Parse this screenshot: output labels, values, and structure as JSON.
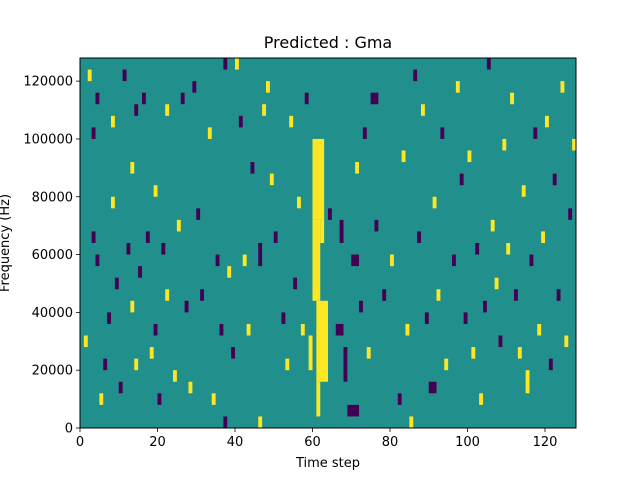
{
  "chart_data": {
    "type": "heatmap",
    "title": "Predicted : Gma",
    "xlabel": "Time step",
    "ylabel": "Frequency (Hz)",
    "xlim": [
      0,
      128
    ],
    "ylim": [
      0,
      128000
    ],
    "xticks": [
      0,
      20,
      40,
      60,
      80,
      100,
      120
    ],
    "yticks": [
      0,
      20000,
      40000,
      60000,
      80000,
      100000,
      120000
    ],
    "xtick_labels": [
      "0",
      "20",
      "40",
      "60",
      "80",
      "100",
      "120"
    ],
    "ytick_labels": [
      "0",
      "20000",
      "40000",
      "60000",
      "80000",
      "100000",
      "120000"
    ],
    "grid": false,
    "colormap": "viridis",
    "colors": {
      "background": "#21908d",
      "low": "#440154",
      "high": "#fde725"
    },
    "bin_height_hz": 4000,
    "cells": [
      {
        "t": 60,
        "f": 72000,
        "v": "high",
        "frames": 3,
        "height": 28000
      },
      {
        "t": 60,
        "f": 44000,
        "v": "high",
        "frames": 2,
        "height": 28000
      },
      {
        "t": 61,
        "f": 16000,
        "v": "high",
        "frames": 3,
        "height": 28000
      },
      {
        "t": 61,
        "f": 4000,
        "v": "high",
        "frames": 1,
        "height": 12000
      },
      {
        "t": 59,
        "f": 20000,
        "v": "high",
        "frames": 1,
        "height": 12000
      },
      {
        "t": 62,
        "f": 64000,
        "v": "high",
        "frames": 1,
        "height": 8000
      },
      {
        "t": 2,
        "f": 120000,
        "v": "high",
        "frames": 1,
        "height": 4000
      },
      {
        "t": 3,
        "f": 64000,
        "v": "low",
        "frames": 1,
        "height": 4000
      },
      {
        "t": 3,
        "f": 100000,
        "v": "low",
        "frames": 1,
        "height": 4000
      },
      {
        "t": 4,
        "f": 112000,
        "v": "low",
        "frames": 1,
        "height": 4000
      },
      {
        "t": 1,
        "f": 28000,
        "v": "high",
        "frames": 1,
        "height": 4000
      },
      {
        "t": 4,
        "f": 56000,
        "v": "low",
        "frames": 1,
        "height": 4000
      },
      {
        "t": 5,
        "f": 8000,
        "v": "high",
        "frames": 1,
        "height": 4000
      },
      {
        "t": 6,
        "f": 20000,
        "v": "low",
        "frames": 1,
        "height": 4000
      },
      {
        "t": 7,
        "f": 36000,
        "v": "low",
        "frames": 1,
        "height": 4000
      },
      {
        "t": 8,
        "f": 104000,
        "v": "high",
        "frames": 1,
        "height": 4000
      },
      {
        "t": 8,
        "f": 76000,
        "v": "high",
        "frames": 1,
        "height": 4000
      },
      {
        "t": 9,
        "f": 48000,
        "v": "low",
        "frames": 1,
        "height": 4000
      },
      {
        "t": 10,
        "f": 12000,
        "v": "low",
        "frames": 1,
        "height": 4000
      },
      {
        "t": 11,
        "f": 120000,
        "v": "low",
        "frames": 1,
        "height": 4000
      },
      {
        "t": 12,
        "f": 60000,
        "v": "low",
        "frames": 1,
        "height": 4000
      },
      {
        "t": 13,
        "f": 88000,
        "v": "high",
        "frames": 1,
        "height": 4000
      },
      {
        "t": 13,
        "f": 40000,
        "v": "high",
        "frames": 1,
        "height": 4000
      },
      {
        "t": 14,
        "f": 108000,
        "v": "low",
        "frames": 1,
        "height": 4000
      },
      {
        "t": 14,
        "f": 20000,
        "v": "high",
        "frames": 1,
        "height": 4000
      },
      {
        "t": 15,
        "f": 52000,
        "v": "low",
        "frames": 1,
        "height": 4000
      },
      {
        "t": 16,
        "f": 112000,
        "v": "low",
        "frames": 1,
        "height": 4000
      },
      {
        "t": 17,
        "f": 64000,
        "v": "low",
        "frames": 1,
        "height": 4000
      },
      {
        "t": 18,
        "f": 24000,
        "v": "high",
        "frames": 1,
        "height": 4000
      },
      {
        "t": 19,
        "f": 80000,
        "v": "high",
        "frames": 1,
        "height": 4000
      },
      {
        "t": 19,
        "f": 32000,
        "v": "low",
        "frames": 1,
        "height": 4000
      },
      {
        "t": 20,
        "f": 8000,
        "v": "low",
        "frames": 1,
        "height": 4000
      },
      {
        "t": 21,
        "f": 60000,
        "v": "low",
        "frames": 1,
        "height": 4000
      },
      {
        "t": 22,
        "f": 44000,
        "v": "high",
        "frames": 1,
        "height": 4000
      },
      {
        "t": 22,
        "f": 108000,
        "v": "high",
        "frames": 1,
        "height": 4000
      },
      {
        "t": 24,
        "f": 16000,
        "v": "high",
        "frames": 1,
        "height": 4000
      },
      {
        "t": 25,
        "f": 68000,
        "v": "high",
        "frames": 1,
        "height": 4000
      },
      {
        "t": 26,
        "f": 112000,
        "v": "low",
        "frames": 1,
        "height": 4000
      },
      {
        "t": 27,
        "f": 40000,
        "v": "low",
        "frames": 1,
        "height": 4000
      },
      {
        "t": 28,
        "f": 12000,
        "v": "high",
        "frames": 1,
        "height": 4000
      },
      {
        "t": 29,
        "f": 116000,
        "v": "low",
        "frames": 1,
        "height": 4000
      },
      {
        "t": 30,
        "f": 72000,
        "v": "low",
        "frames": 1,
        "height": 4000
      },
      {
        "t": 31,
        "f": 44000,
        "v": "low",
        "frames": 1,
        "height": 4000
      },
      {
        "t": 33,
        "f": 100000,
        "v": "high",
        "frames": 1,
        "height": 4000
      },
      {
        "t": 34,
        "f": 8000,
        "v": "high",
        "frames": 1,
        "height": 4000
      },
      {
        "t": 35,
        "f": 56000,
        "v": "low",
        "frames": 1,
        "height": 4000
      },
      {
        "t": 36,
        "f": 32000,
        "v": "low",
        "frames": 1,
        "height": 4000
      },
      {
        "t": 37,
        "f": 0,
        "v": "low",
        "frames": 1,
        "height": 4000
      },
      {
        "t": 37,
        "f": 124000,
        "v": "low",
        "frames": 1,
        "height": 4000
      },
      {
        "t": 38,
        "f": 52000,
        "v": "high",
        "frames": 1,
        "height": 4000
      },
      {
        "t": 39,
        "f": 24000,
        "v": "low",
        "frames": 1,
        "height": 4000
      },
      {
        "t": 40,
        "f": 124000,
        "v": "high",
        "frames": 1,
        "height": 4000
      },
      {
        "t": 41,
        "f": 104000,
        "v": "low",
        "frames": 1,
        "height": 4000
      },
      {
        "t": 42,
        "f": 56000,
        "v": "high",
        "frames": 1,
        "height": 4000
      },
      {
        "t": 43,
        "f": 32000,
        "v": "high",
        "frames": 1,
        "height": 4000
      },
      {
        "t": 44,
        "f": 88000,
        "v": "low",
        "frames": 1,
        "height": 4000
      },
      {
        "t": 46,
        "f": 56000,
        "v": "low",
        "frames": 1,
        "height": 8000
      },
      {
        "t": 46,
        "f": 0,
        "v": "high",
        "frames": 1,
        "height": 4000
      },
      {
        "t": 47,
        "f": 108000,
        "v": "high",
        "frames": 1,
        "height": 4000
      },
      {
        "t": 48,
        "f": 116000,
        "v": "high",
        "frames": 1,
        "height": 4000
      },
      {
        "t": 49,
        "f": 84000,
        "v": "high",
        "frames": 1,
        "height": 4000
      },
      {
        "t": 50,
        "f": 64000,
        "v": "low",
        "frames": 1,
        "height": 4000
      },
      {
        "t": 52,
        "f": 36000,
        "v": "low",
        "frames": 1,
        "height": 4000
      },
      {
        "t": 53,
        "f": 20000,
        "v": "high",
        "frames": 1,
        "height": 4000
      },
      {
        "t": 54,
        "f": 104000,
        "v": "high",
        "frames": 1,
        "height": 4000
      },
      {
        "t": 55,
        "f": 48000,
        "v": "low",
        "frames": 1,
        "height": 4000
      },
      {
        "t": 56,
        "f": 76000,
        "v": "high",
        "frames": 1,
        "height": 4000
      },
      {
        "t": 57,
        "f": 32000,
        "v": "high",
        "frames": 1,
        "height": 4000
      },
      {
        "t": 58,
        "f": 112000,
        "v": "low",
        "frames": 1,
        "height": 4000
      },
      {
        "t": 64,
        "f": 72000,
        "v": "low",
        "frames": 1,
        "height": 4000
      },
      {
        "t": 66,
        "f": 32000,
        "v": "low",
        "frames": 2,
        "height": 4000
      },
      {
        "t": 67,
        "f": 64000,
        "v": "low",
        "frames": 1,
        "height": 8000
      },
      {
        "t": 68,
        "f": 16000,
        "v": "low",
        "frames": 1,
        "height": 12000
      },
      {
        "t": 69,
        "f": 4000,
        "v": "low",
        "frames": 3,
        "height": 4000
      },
      {
        "t": 70,
        "f": 56000,
        "v": "low",
        "frames": 2,
        "height": 4000
      },
      {
        "t": 71,
        "f": 88000,
        "v": "high",
        "frames": 1,
        "height": 4000
      },
      {
        "t": 72,
        "f": 40000,
        "v": "low",
        "frames": 1,
        "height": 4000
      },
      {
        "t": 73,
        "f": 100000,
        "v": "low",
        "frames": 1,
        "height": 4000
      },
      {
        "t": 74,
        "f": 24000,
        "v": "high",
        "frames": 1,
        "height": 4000
      },
      {
        "t": 75,
        "f": 112000,
        "v": "low",
        "frames": 2,
        "height": 4000
      },
      {
        "t": 76,
        "f": 68000,
        "v": "low",
        "frames": 1,
        "height": 4000
      },
      {
        "t": 78,
        "f": 44000,
        "v": "low",
        "frames": 1,
        "height": 4000
      },
      {
        "t": 80,
        "f": 56000,
        "v": "high",
        "frames": 1,
        "height": 4000
      },
      {
        "t": 82,
        "f": 8000,
        "v": "low",
        "frames": 1,
        "height": 4000
      },
      {
        "t": 83,
        "f": 92000,
        "v": "high",
        "frames": 1,
        "height": 4000
      },
      {
        "t": 84,
        "f": 32000,
        "v": "high",
        "frames": 1,
        "height": 4000
      },
      {
        "t": 85,
        "f": 0,
        "v": "high",
        "frames": 1,
        "height": 4000
      },
      {
        "t": 86,
        "f": 120000,
        "v": "low",
        "frames": 1,
        "height": 4000
      },
      {
        "t": 87,
        "f": 64000,
        "v": "low",
        "frames": 1,
        "height": 4000
      },
      {
        "t": 88,
        "f": 108000,
        "v": "high",
        "frames": 1,
        "height": 4000
      },
      {
        "t": 89,
        "f": 36000,
        "v": "low",
        "frames": 1,
        "height": 4000
      },
      {
        "t": 90,
        "f": 12000,
        "v": "low",
        "frames": 2,
        "height": 4000
      },
      {
        "t": 91,
        "f": 76000,
        "v": "high",
        "frames": 1,
        "height": 4000
      },
      {
        "t": 92,
        "f": 44000,
        "v": "high",
        "frames": 1,
        "height": 4000
      },
      {
        "t": 93,
        "f": 100000,
        "v": "low",
        "frames": 1,
        "height": 4000
      },
      {
        "t": 94,
        "f": 20000,
        "v": "high",
        "frames": 1,
        "height": 4000
      },
      {
        "t": 96,
        "f": 56000,
        "v": "low",
        "frames": 1,
        "height": 4000
      },
      {
        "t": 97,
        "f": 116000,
        "v": "high",
        "frames": 1,
        "height": 4000
      },
      {
        "t": 98,
        "f": 84000,
        "v": "low",
        "frames": 1,
        "height": 4000
      },
      {
        "t": 99,
        "f": 36000,
        "v": "low",
        "frames": 1,
        "height": 4000
      },
      {
        "t": 100,
        "f": 92000,
        "v": "high",
        "frames": 1,
        "height": 4000
      },
      {
        "t": 101,
        "f": 24000,
        "v": "high",
        "frames": 1,
        "height": 4000
      },
      {
        "t": 102,
        "f": 60000,
        "v": "low",
        "frames": 1,
        "height": 4000
      },
      {
        "t": 103,
        "f": 8000,
        "v": "high",
        "frames": 1,
        "height": 4000
      },
      {
        "t": 104,
        "f": 40000,
        "v": "low",
        "frames": 1,
        "height": 4000
      },
      {
        "t": 105,
        "f": 124000,
        "v": "low",
        "frames": 1,
        "height": 4000
      },
      {
        "t": 106,
        "f": 68000,
        "v": "high",
        "frames": 1,
        "height": 4000
      },
      {
        "t": 107,
        "f": 48000,
        "v": "high",
        "frames": 1,
        "height": 4000
      },
      {
        "t": 108,
        "f": 28000,
        "v": "low",
        "frames": 1,
        "height": 4000
      },
      {
        "t": 109,
        "f": 96000,
        "v": "high",
        "frames": 1,
        "height": 4000
      },
      {
        "t": 110,
        "f": 60000,
        "v": "high",
        "frames": 1,
        "height": 4000
      },
      {
        "t": 111,
        "f": 112000,
        "v": "high",
        "frames": 1,
        "height": 4000
      },
      {
        "t": 112,
        "f": 44000,
        "v": "low",
        "frames": 1,
        "height": 4000
      },
      {
        "t": 113,
        "f": 24000,
        "v": "high",
        "frames": 1,
        "height": 4000
      },
      {
        "t": 114,
        "f": 80000,
        "v": "high",
        "frames": 1,
        "height": 4000
      },
      {
        "t": 115,
        "f": 12000,
        "v": "high",
        "frames": 1,
        "height": 8000
      },
      {
        "t": 116,
        "f": 56000,
        "v": "low",
        "frames": 1,
        "height": 4000
      },
      {
        "t": 117,
        "f": 100000,
        "v": "low",
        "frames": 1,
        "height": 4000
      },
      {
        "t": 118,
        "f": 32000,
        "v": "high",
        "frames": 1,
        "height": 4000
      },
      {
        "t": 119,
        "f": 64000,
        "v": "high",
        "frames": 1,
        "height": 4000
      },
      {
        "t": 120,
        "f": 104000,
        "v": "high",
        "frames": 1,
        "height": 4000
      },
      {
        "t": 121,
        "f": 20000,
        "v": "low",
        "frames": 1,
        "height": 4000
      },
      {
        "t": 122,
        "f": 84000,
        "v": "low",
        "frames": 1,
        "height": 4000
      },
      {
        "t": 123,
        "f": 44000,
        "v": "low",
        "frames": 1,
        "height": 4000
      },
      {
        "t": 124,
        "f": 116000,
        "v": "high",
        "frames": 1,
        "height": 4000
      },
      {
        "t": 125,
        "f": 28000,
        "v": "high",
        "frames": 1,
        "height": 4000
      },
      {
        "t": 126,
        "f": 72000,
        "v": "low",
        "frames": 1,
        "height": 4000
      },
      {
        "t": 127,
        "f": 96000,
        "v": "high",
        "frames": 1,
        "height": 4000
      }
    ]
  }
}
